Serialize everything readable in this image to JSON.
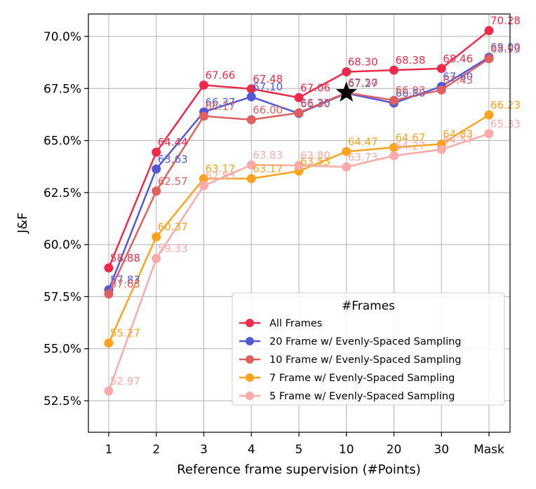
{
  "chart_data": {
    "type": "line",
    "xlabel": "Reference frame supervision (#Points)",
    "ylabel": "J&F",
    "categories": [
      "1",
      "2",
      "3",
      "4",
      "5",
      "10",
      "20",
      "30",
      "Mask"
    ],
    "ylim": [
      51.0,
      71.5
    ],
    "yticks": [
      "52.5%",
      "55.0%",
      "57.5%",
      "60.0%",
      "62.5%",
      "65.0%",
      "67.5%",
      "70.0%"
    ],
    "ytick_values": [
      52.5,
      55.0,
      57.5,
      60.0,
      62.5,
      65.0,
      67.5,
      70.0
    ],
    "grid": true,
    "legend": {
      "title": "#Frames",
      "placement": "lower-right"
    },
    "series": [
      {
        "name": "All Frames",
        "color": "#ee2a4a",
        "values": [
          58.88,
          64.44,
          67.66,
          67.48,
          67.06,
          68.3,
          68.38,
          68.46,
          70.28
        ],
        "labels": [
          "58.88",
          "64.44",
          "67.66",
          "67.48",
          "67.06",
          "68.30",
          "68.38",
          "68.46",
          "70.28"
        ]
      },
      {
        "name": "20 Frame w/ Evenly-Spaced Sampling",
        "color": "#5159d9",
        "values": [
          57.83,
          63.63,
          66.37,
          67.1,
          66.3,
          67.27,
          66.8,
          67.6,
          69.0
        ],
        "labels": [
          "57.83",
          "63.63",
          "66.37",
          "67.10",
          "66.30",
          "67.27",
          "66.80",
          "67.60",
          "69.00"
        ]
      },
      {
        "name": "10 Frame w/ Evenly-Spaced Sampling",
        "color": "#e0605f",
        "values": [
          57.63,
          62.57,
          66.17,
          66.0,
          66.33,
          67.3,
          66.93,
          67.43,
          68.93
        ],
        "labels": [
          "57.63",
          "62.57",
          "66.17",
          "66.00",
          "66.33",
          "67.30",
          "66.93",
          "67.43",
          "68.93"
        ]
      },
      {
        "name": "7 Frame w/ Evenly-Spaced Sampling",
        "color": "#fba31d",
        "values": [
          55.27,
          60.37,
          63.17,
          63.17,
          63.53,
          64.47,
          64.67,
          64.83,
          66.23
        ],
        "labels": [
          "55.27",
          "60.37",
          "63.17",
          "63.17",
          "63.53",
          "64.47",
          "64.67",
          "64.83",
          "66.23"
        ]
      },
      {
        "name": "5 Frame w/ Evenly-Spaced Sampling",
        "color": "#fbaaaa",
        "values": [
          52.97,
          59.33,
          62.83,
          63.83,
          63.8,
          63.73,
          64.27,
          64.57,
          65.33
        ],
        "labels": [
          "52.97",
          "59.33",
          "62.83",
          "63.83",
          "63.80",
          "63.73",
          "64.27",
          "64.57",
          "65.33"
        ]
      }
    ],
    "star": {
      "x": "10",
      "y": 67.3,
      "color": "#000000"
    }
  }
}
